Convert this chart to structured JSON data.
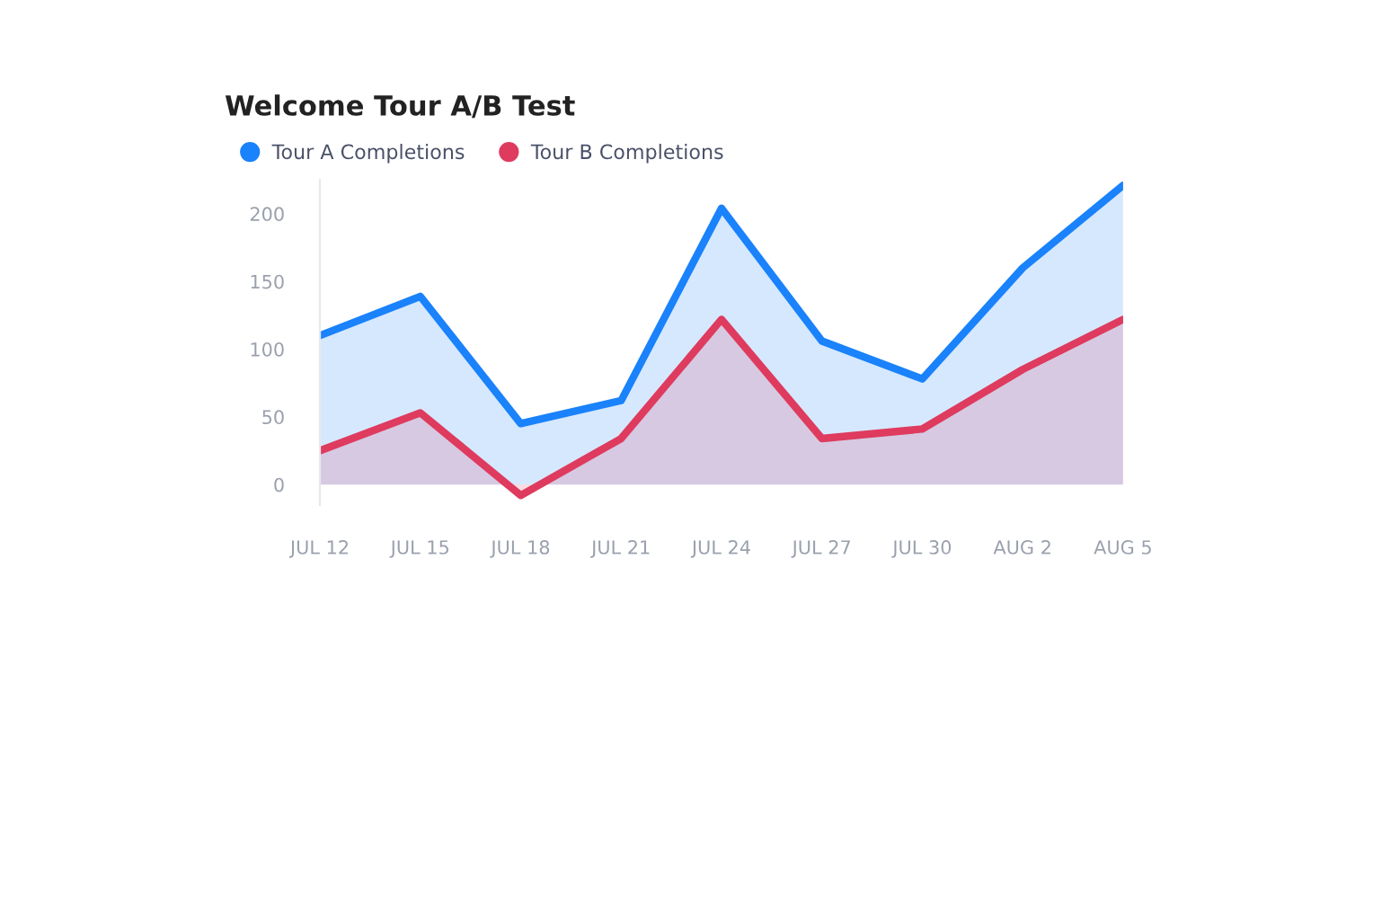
{
  "chart_data": {
    "type": "area",
    "title": "Welcome Tour A/B Test",
    "categories": [
      "JUL 12",
      "JUL 15",
      "JUL 18",
      "JUL 21",
      "JUL 24",
      "JUL 27",
      "JUL 30",
      "AUG 2",
      "AUG 5"
    ],
    "series": [
      {
        "name": "Tour A Completions",
        "color": "#1a82fb",
        "values": [
          110,
          139,
          45,
          62,
          204,
          106,
          78,
          160,
          221
        ]
      },
      {
        "name": "Tour B Completions",
        "color": "#de3b5f",
        "values": [
          25,
          53,
          -8,
          34,
          122,
          34,
          41,
          85,
          122
        ]
      }
    ],
    "ylim": [
      -15,
      225
    ],
    "yticks": [
      0,
      50,
      100,
      150,
      200
    ],
    "grid": false,
    "legend": "top left",
    "marker": "none",
    "line_style": "solid"
  }
}
